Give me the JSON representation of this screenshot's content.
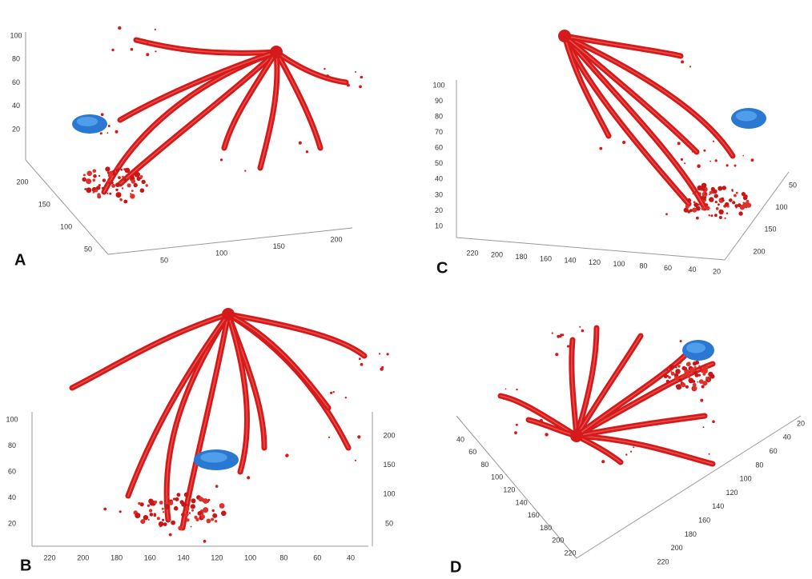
{
  "panels": [
    {
      "label": "A",
      "z_ticks": [
        "100",
        "80",
        "60",
        "40",
        "20"
      ],
      "y_ticks": [
        "200",
        "150",
        "100",
        "50"
      ],
      "x_ticks": [
        "50",
        "100",
        "150",
        "200"
      ]
    },
    {
      "label": "B",
      "z_ticks": [
        "100",
        "80",
        "60",
        "40",
        "20"
      ],
      "x_ticks": [
        "220",
        "200",
        "180",
        "160",
        "140",
        "120",
        "100",
        "80",
        "60",
        "40"
      ],
      "y_ticks": [
        "200",
        "150",
        "100",
        "50"
      ]
    },
    {
      "label": "C",
      "z_ticks": [
        "100",
        "90",
        "80",
        "70",
        "60",
        "50",
        "40",
        "30",
        "20",
        "10"
      ],
      "x_ticks": [
        "220",
        "200",
        "180",
        "160",
        "140",
        "120",
        "100",
        "80",
        "60",
        "40",
        "20"
      ],
      "y_ticks": [
        "50",
        "100",
        "150",
        "200"
      ]
    },
    {
      "label": "D",
      "x_ticks": [
        "40",
        "60",
        "80",
        "100",
        "120",
        "140",
        "160",
        "180",
        "200",
        "220"
      ],
      "y_ticks": [
        "20",
        "40",
        "60",
        "80",
        "100",
        "120",
        "140",
        "160",
        "180",
        "200",
        "220"
      ]
    }
  ]
}
